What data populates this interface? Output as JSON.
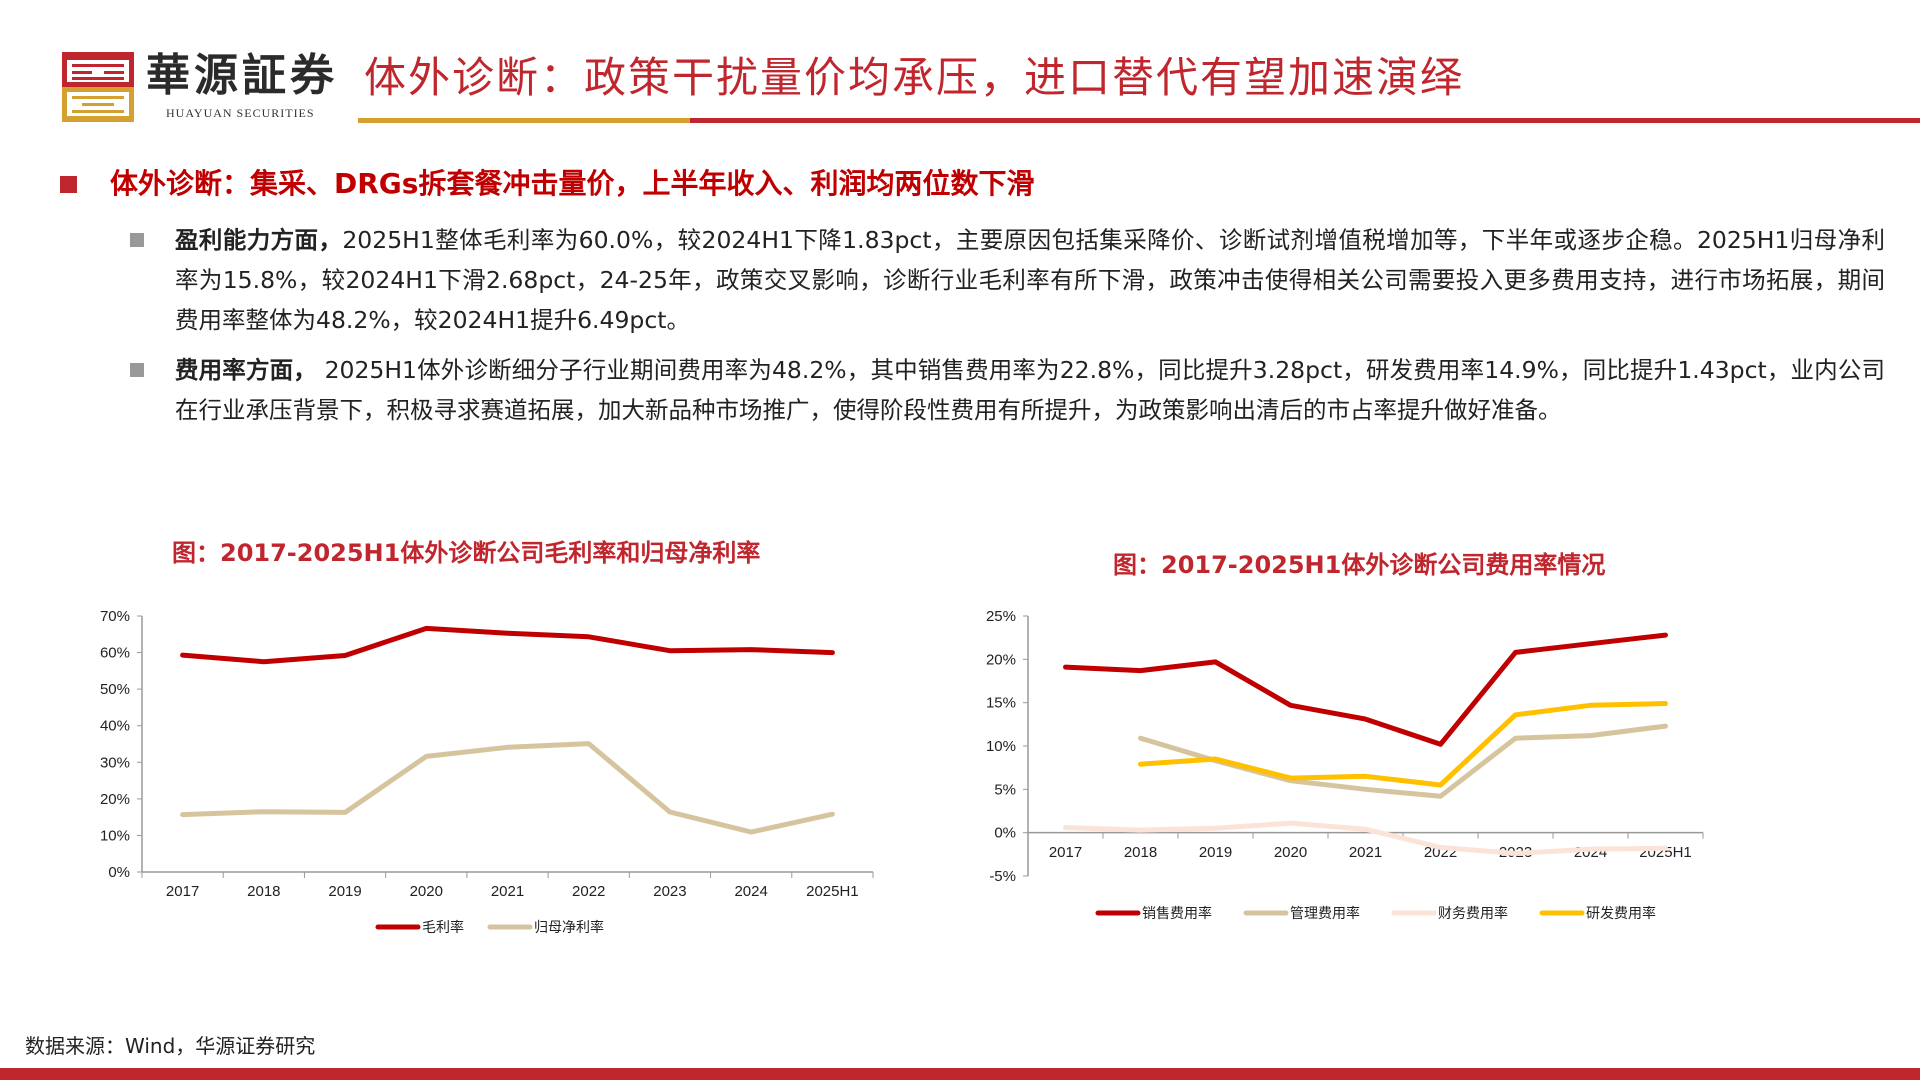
{
  "header": {
    "brand_cn": "華源証券",
    "brand_en": "HUAYUAN SECURITIES",
    "title": "体外诊断：政策干扰量价均承压，进口替代有望加速演绎",
    "colors": {
      "red": "#c0262d",
      "gold": "#d4a030"
    }
  },
  "section": {
    "heading": "体外诊断：集采、DRGs拆套餐冲击量价，上半年收入、利润均两位数下滑",
    "bullets": [
      {
        "lead": "盈利能力方面，",
        "text": "2025H1整体毛利率为60.0%，较2024H1下降1.83pct，主要原因包括集采降价、诊断试剂增值税增加等，下半年或逐步企稳。2025H1归母净利率为15.8%，较2024H1下滑2.68pct，24-25年，政策交叉影响，诊断行业毛利率有所下滑，政策冲击使得相关公司需要投入更多费用支持，进行市场拓展，期间费用率整体为48.2%，较2024H1提升6.49pct。"
      },
      {
        "lead": "费用率方面，",
        "text": " 2025H1体外诊断细分子行业期间费用率为48.2%，其中销售费用率为22.8%，同比提升3.28pct，研发费用率14.9%，同比提升1.43pct，业内公司在行业承压背景下，积极寻求赛道拓展，加大新品种市场推广，使得阶段性费用有所提升，为政策影响出清后的市占率提升做好准备。"
      }
    ]
  },
  "chart_data": [
    {
      "type": "line",
      "title": "图：2017-2025H1体外诊断公司毛利率和归母净利率",
      "categories": [
        "2017",
        "2018",
        "2019",
        "2020",
        "2021",
        "2022",
        "2023",
        "2024",
        "2025H1"
      ],
      "ylim": [
        0,
        70
      ],
      "yticks": [
        "0%",
        "10%",
        "20%",
        "30%",
        "40%",
        "50%",
        "60%",
        "70%"
      ],
      "legend": "bottom",
      "grid": false,
      "series": [
        {
          "name": "毛利率",
          "color": "#c00000",
          "values": [
            59.3,
            57.5,
            59.2,
            66.6,
            65.3,
            64.3,
            60.5,
            60.8,
            60.0
          ]
        },
        {
          "name": "归母净利率",
          "color": "#d6c49e",
          "values": [
            15.7,
            16.5,
            16.3,
            31.6,
            34.1,
            35.1,
            16.4,
            10.9,
            15.8
          ]
        }
      ]
    },
    {
      "type": "line",
      "title": "图：2017-2025H1体外诊断公司费用率情况",
      "categories": [
        "2017",
        "2018",
        "2019",
        "2020",
        "2021",
        "2022",
        "2023",
        "2024",
        "2025H1"
      ],
      "ylim": [
        -5,
        25
      ],
      "yticks": [
        "-5%",
        "0%",
        "5%",
        "10%",
        "15%",
        "20%",
        "25%"
      ],
      "legend": "bottom",
      "grid": false,
      "series": [
        {
          "name": "销售费用率",
          "color": "#c00000",
          "values": [
            19.1,
            18.7,
            19.7,
            14.7,
            13.1,
            10.2,
            20.8,
            21.8,
            22.8
          ]
        },
        {
          "name": "管理费用率",
          "color": "#d6c49e",
          "values": [
            null,
            10.9,
            8.3,
            6.0,
            5.0,
            4.2,
            10.9,
            11.2,
            12.3
          ]
        },
        {
          "name": "财务费用率",
          "color": "#fbe3d8",
          "values": [
            0.6,
            0.3,
            0.5,
            1.1,
            0.4,
            -1.7,
            -2.4,
            -1.9,
            -1.8
          ]
        },
        {
          "name": "研发费用率",
          "color": "#ffc000",
          "values": [
            null,
            7.9,
            8.5,
            6.3,
            6.5,
            5.5,
            13.6,
            14.7,
            14.9
          ]
        }
      ]
    }
  ],
  "footer": {
    "source": "数据来源：Wind，华源证券研究"
  }
}
